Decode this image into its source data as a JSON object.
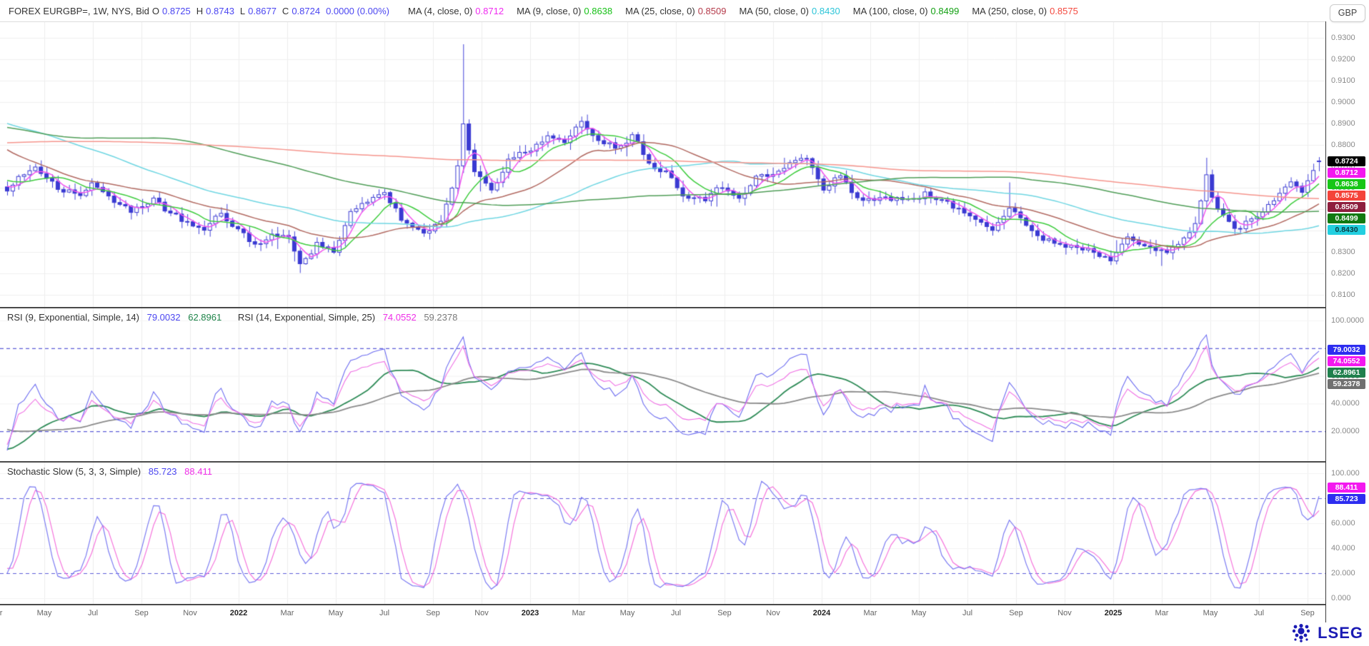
{
  "header": {
    "symbol_info": "FOREX EURGBP=, 1W, NYS, Bid",
    "ohlc": [
      {
        "label": "O",
        "value": "0.8725"
      },
      {
        "label": "H",
        "value": "0.8743"
      },
      {
        "label": "L",
        "value": "0.8677"
      },
      {
        "label": "C",
        "value": "0.8724"
      }
    ],
    "change": "0.0000 (0.00%)",
    "mas": [
      {
        "label": "MA (4, close, 0)",
        "value": "0.8712",
        "color": "#f02cf0"
      },
      {
        "label": "MA (9, close, 0)",
        "value": "0.8638",
        "color": "#17c117"
      },
      {
        "label": "MA (25, close, 0)",
        "value": "0.8509",
        "color": "#b43a4a"
      },
      {
        "label": "MA (50, close, 0)",
        "value": "0.8430",
        "color": "#2cc5d8"
      },
      {
        "label": "MA (100, close, 0)",
        "value": "0.8499",
        "color": "#12a012"
      },
      {
        "label": "MA (250, close, 0)",
        "value": "0.8575",
        "color": "#f4493f"
      }
    ]
  },
  "rsi_header": {
    "label1": "RSI (9, Exponential, Simple, 14)",
    "value1": "79.0032",
    "value2": "62.8961",
    "label2": "RSI (14, Exponential, Simple, 25)",
    "value3": "74.0552",
    "value4": "59.2378"
  },
  "stoch_header": {
    "label": "Stochastic Slow (5, 3, 3, Simple)",
    "k": "85.723",
    "d": "88.411"
  },
  "scale": {
    "currency": "GBP",
    "main": {
      "labels": [
        {
          "text": "0.9300",
          "value": 0.93
        },
        {
          "text": "0.9200",
          "value": 0.92
        },
        {
          "text": "0.9100",
          "value": 0.91
        },
        {
          "text": "0.9000",
          "value": 0.9
        },
        {
          "text": "0.8900",
          "value": 0.89
        },
        {
          "text": "0.8800",
          "value": 0.88
        },
        {
          "text": "0.8700",
          "value": 0.87
        },
        {
          "text": "0.8600",
          "value": 0.86
        },
        {
          "text": "0.8500",
          "value": 0.85
        },
        {
          "text": "0.8400",
          "value": 0.84
        },
        {
          "text": "0.8300",
          "value": 0.83
        },
        {
          "text": "0.8200",
          "value": 0.82
        },
        {
          "text": "0.8100",
          "value": 0.81
        }
      ],
      "badges": [
        {
          "text": "0.8724",
          "value": 0.8724,
          "bg": "#000000",
          "fg": "#ffffff"
        },
        {
          "text": "0.8712",
          "value": 0.8712,
          "bg": "#f318ef",
          "fg": "#ffffff"
        },
        {
          "text": "0.8638",
          "value": 0.8638,
          "bg": "#17c617",
          "fg": "#ffffff"
        },
        {
          "text": "0.8575",
          "value": 0.8575,
          "bg": "#f4433a",
          "fg": "#ffffff"
        },
        {
          "text": "0.8509",
          "value": 0.8509,
          "bg": "#8e1e3e",
          "fg": "#ffffff"
        },
        {
          "text": "0.8499",
          "value": 0.8499,
          "bg": "#117a11",
          "fg": "#ffffff"
        },
        {
          "text": "0.8430",
          "value": 0.843,
          "bg": "#23cfe0",
          "fg": "#083a40"
        }
      ]
    },
    "rsi": {
      "labels": [
        {
          "text": "100.0000",
          "value": 100
        },
        {
          "text": "80.0000",
          "value": 80
        },
        {
          "text": "60.0000",
          "value": 60
        },
        {
          "text": "40.0000",
          "value": 40
        },
        {
          "text": "20.0000",
          "value": 20
        }
      ],
      "badges": [
        {
          "text": "79.0032",
          "value": 79.0032,
          "bg": "#2d2df0",
          "fg": "#ffffff"
        },
        {
          "text": "74.0552",
          "value": 74.0552,
          "bg": "#f318ef",
          "fg": "#ffffff"
        },
        {
          "text": "62.8961",
          "value": 62.8961,
          "bg": "#20804d",
          "fg": "#ffffff"
        },
        {
          "text": "59.2378",
          "value": 59.2378,
          "bg": "#707070",
          "fg": "#ffffff"
        }
      ]
    },
    "stoch": {
      "labels": [
        {
          "text": "100.000",
          "value": 100
        },
        {
          "text": "80.000",
          "value": 80
        },
        {
          "text": "60.000",
          "value": 60
        },
        {
          "text": "40.000",
          "value": 40
        },
        {
          "text": "20.000",
          "value": 20
        },
        {
          "text": "0.000",
          "value": 0
        }
      ],
      "badges": [
        {
          "text": "88.411",
          "value": 88.411,
          "bg": "#f318ef",
          "fg": "#ffffff"
        },
        {
          "text": "85.723",
          "value": 85.723,
          "bg": "#2d2df0",
          "fg": "#ffffff"
        }
      ]
    }
  },
  "x_axis": {
    "labels": [
      "Mar",
      "May",
      "Jul",
      "Sep",
      "Nov",
      "2022",
      "Mar",
      "May",
      "Jul",
      "Sep",
      "Nov",
      "2023",
      "Mar",
      "May",
      "Jul",
      "Sep",
      "Nov",
      "2024",
      "Mar",
      "May",
      "Jul",
      "Sep",
      "Nov",
      "2025",
      "Mar",
      "May",
      "Jul",
      "Sep"
    ]
  },
  "logo": {
    "text": "LSEG",
    "color": "#1b1bb4"
  },
  "chart_data": {
    "type": "candlestick",
    "symbol": "EURGBP=",
    "interval": "1W",
    "venue": "NYS",
    "side": "Bid",
    "last_ohlc": {
      "open": 0.8725,
      "high": 0.8743,
      "low": 0.8677,
      "close": 0.8724
    },
    "change": 0.0,
    "change_pct": 0.0,
    "price_axis": {
      "min": 0.81,
      "max": 0.93,
      "tick": 0.01
    },
    "x_range": [
      "Mar 2021",
      "Sep 2025"
    ],
    "grid": true,
    "candles": {
      "count": 234,
      "seed": 11,
      "style": {
        "up": "hollow",
        "down": "filled",
        "color": "#3a3ad2"
      },
      "warmup_anchors": [
        [
          -250,
          0.84
        ],
        [
          -240,
          0.855
        ],
        [
          -220,
          0.875
        ],
        [
          -200,
          0.88
        ],
        [
          -180,
          0.885
        ],
        [
          -160,
          0.876
        ],
        [
          -140,
          0.885
        ],
        [
          -120,
          0.87
        ],
        [
          -100,
          0.895
        ],
        [
          -95,
          0.923
        ],
        [
          -85,
          0.86
        ],
        [
          -75,
          0.848
        ],
        [
          -62,
          0.92
        ],
        [
          -55,
          0.895
        ],
        [
          -45,
          0.905
        ],
        [
          -35,
          0.9
        ],
        [
          -25,
          0.902
        ],
        [
          -15,
          0.885
        ],
        [
          -8,
          0.868
        ],
        [
          -3,
          0.862
        ],
        [
          0,
          0.859
        ]
      ],
      "anchors": [
        [
          0,
          0.859
        ],
        [
          2,
          0.864
        ],
        [
          5,
          0.87
        ],
        [
          7,
          0.866
        ],
        [
          9,
          0.861
        ],
        [
          13,
          0.858
        ],
        [
          15,
          0.862
        ],
        [
          17,
          0.8575
        ],
        [
          19,
          0.853
        ],
        [
          22,
          0.848
        ],
        [
          26,
          0.856
        ],
        [
          29,
          0.8475
        ],
        [
          32,
          0.843
        ],
        [
          35,
          0.8395
        ],
        [
          38,
          0.847
        ],
        [
          41,
          0.8405
        ],
        [
          44,
          0.8335
        ],
        [
          47,
          0.838
        ],
        [
          50,
          0.8355
        ],
        [
          52,
          0.826
        ],
        [
          55,
          0.8345
        ],
        [
          58,
          0.8305
        ],
        [
          61,
          0.848
        ],
        [
          64,
          0.852
        ],
        [
          67,
          0.8575
        ],
        [
          70,
          0.8455
        ],
        [
          74,
          0.8385
        ],
        [
          77,
          0.845
        ],
        [
          80,
          0.87
        ],
        [
          81,
          0.89
        ],
        [
          83,
          0.868
        ],
        [
          86,
          0.861
        ],
        [
          89,
          0.873
        ],
        [
          93,
          0.8775
        ],
        [
          96,
          0.8855
        ],
        [
          99,
          0.88
        ],
        [
          102,
          0.8895
        ],
        [
          105,
          0.884
        ],
        [
          108,
          0.8795
        ],
        [
          111,
          0.885
        ],
        [
          114,
          0.8725
        ],
        [
          117,
          0.868
        ],
        [
          120,
          0.8585
        ],
        [
          124,
          0.856
        ],
        [
          127,
          0.86
        ],
        [
          130,
          0.857
        ],
        [
          133,
          0.8655
        ],
        [
          136,
          0.865
        ],
        [
          139,
          0.8715
        ],
        [
          142,
          0.8735
        ],
        [
          145,
          0.859
        ],
        [
          148,
          0.8655
        ],
        [
          151,
          0.8555
        ],
        [
          155,
          0.855
        ],
        [
          159,
          0.854
        ],
        [
          163,
          0.858
        ],
        [
          167,
          0.852
        ],
        [
          171,
          0.8465
        ],
        [
          175,
          0.8425
        ],
        [
          178,
          0.8525
        ],
        [
          181,
          0.8435
        ],
        [
          184,
          0.8345
        ],
        [
          188,
          0.8335
        ],
        [
          192,
          0.832
        ],
        [
          196,
          0.827
        ],
        [
          199,
          0.8395
        ],
        [
          203,
          0.8335
        ],
        [
          206,
          0.8285
        ],
        [
          209,
          0.836
        ],
        [
          211,
          0.842
        ],
        [
          213,
          0.865
        ],
        [
          214,
          0.856
        ],
        [
          216,
          0.8465
        ],
        [
          219,
          0.8405
        ],
        [
          222,
          0.848
        ],
        [
          225,
          0.856
        ],
        [
          228,
          0.862
        ],
        [
          230,
          0.8585
        ],
        [
          232,
          0.866
        ],
        [
          233,
          0.8724
        ]
      ],
      "events": [
        {
          "idx": 52,
          "low": 0.8202
        },
        {
          "idx": 81,
          "high": 0.927
        },
        {
          "idx": 178,
          "high": 0.8625
        },
        {
          "idx": 213,
          "high": 0.874
        }
      ]
    },
    "moving_averages": [
      {
        "period": 4,
        "source": "close",
        "offset": 0,
        "value": 0.8712,
        "line_color": "#f155ee"
      },
      {
        "period": 9,
        "source": "close",
        "offset": 0,
        "value": 0.8638,
        "line_color": "#3ecc3e"
      },
      {
        "period": 25,
        "source": "close",
        "offset": 0,
        "value": 0.8509,
        "line_color": "#b26a62"
      },
      {
        "period": 50,
        "source": "close",
        "offset": 0,
        "value": 0.843,
        "line_color": "#6fd6e2"
      },
      {
        "period": 100,
        "source": "close",
        "offset": 0,
        "value": 0.8499,
        "line_color": "#4f9d57"
      },
      {
        "period": 250,
        "source": "close",
        "offset": 0,
        "value": 0.8575,
        "line_color": "#f5958d"
      }
    ],
    "rsi": {
      "axis": [
        0,
        100
      ],
      "thresholds": [
        80,
        20
      ],
      "threshold_color": "#5d5dd8",
      "lines": [
        {
          "name": "RSI 9",
          "period": 9,
          "value": 79.0032,
          "color": "#6b6bf0"
        },
        {
          "name": "RSI 9 SMA 14",
          "period": 14,
          "value": 62.8961,
          "color": "#2e8b57"
        },
        {
          "name": "RSI 14",
          "period": 14,
          "value": 74.0552,
          "color": "#ef6fe4"
        },
        {
          "name": "RSI 14 SMA 25",
          "period": 25,
          "value": 59.2378,
          "color": "#8a8a8a"
        }
      ]
    },
    "stochastic": {
      "axis": [
        0,
        100
      ],
      "thresholds": [
        80,
        20
      ],
      "threshold_color": "#5d5dd8",
      "params": [
        5,
        3,
        3
      ],
      "smoothing": "Simple",
      "lines": [
        {
          "name": "%K",
          "value": 85.723,
          "color": "#7b7bf2"
        },
        {
          "name": "%D",
          "value": 88.411,
          "color": "#f573dc"
        }
      ]
    }
  }
}
